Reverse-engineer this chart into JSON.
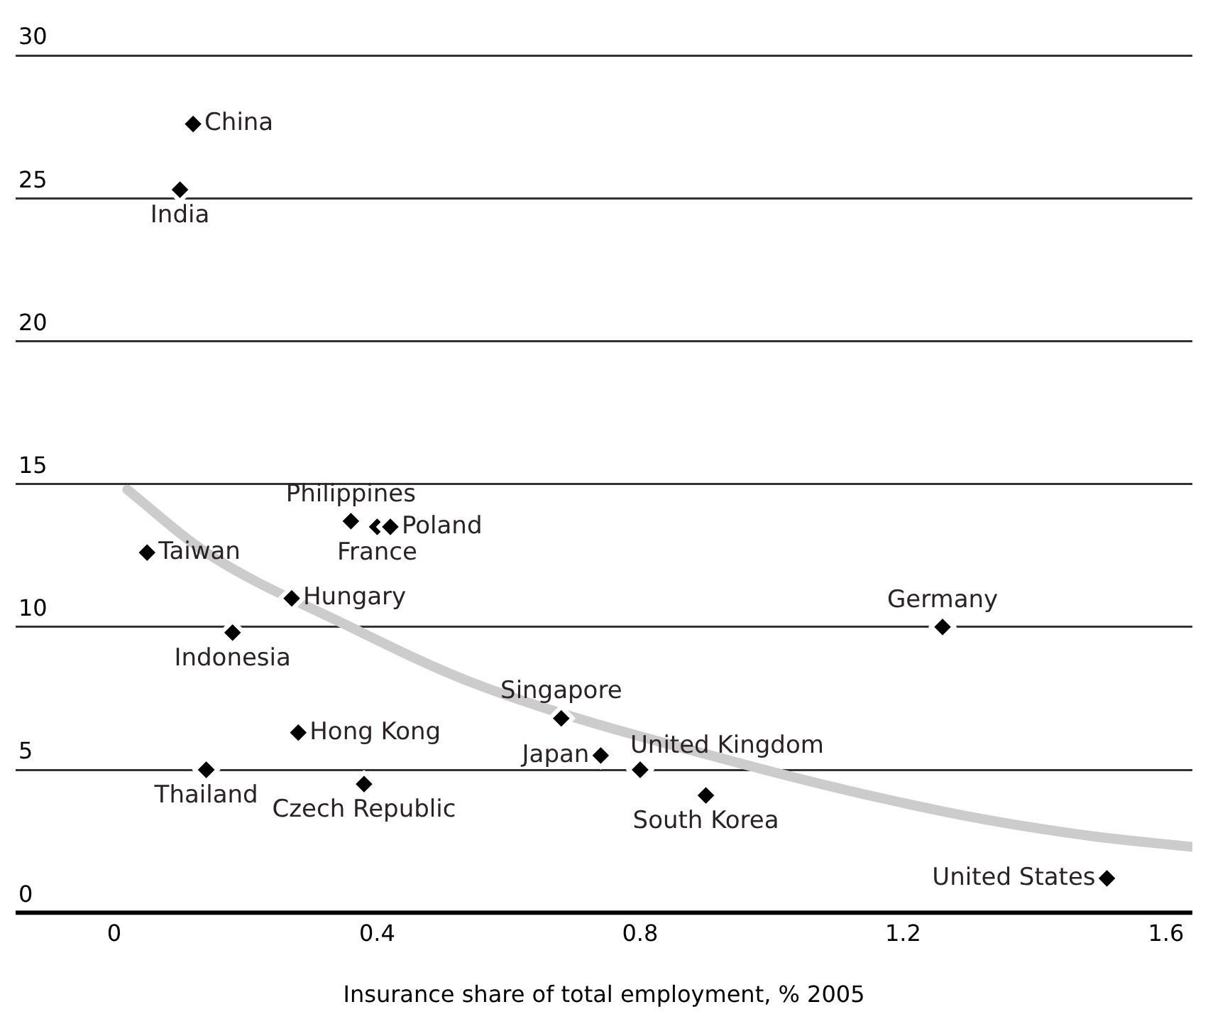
{
  "chart_data": {
    "type": "scatter",
    "xlabel": "Insurance share of total employment, % 2005",
    "x": [
      0.12,
      0.1,
      0.36,
      0.4,
      0.42,
      0.05,
      0.27,
      0.18,
      1.26,
      0.68,
      0.28,
      0.74,
      0.14,
      0.8,
      0.38,
      0.9,
      1.51
    ],
    "series": [
      {
        "type": "scatter",
        "color": "#000000",
        "values": [
          27.6,
          25.3,
          13.7,
          13.5,
          13.5,
          12.6,
          11.0,
          9.8,
          10.0,
          6.8,
          6.3,
          5.5,
          5.0,
          5.0,
          4.5,
          4.1,
          1.2
        ]
      },
      {
        "type": "line",
        "color": "#cccccc",
        "x": [
          0.02,
          0.14,
          0.35,
          0.55,
          0.94,
          1.27,
          1.48,
          1.64
        ],
        "values": [
          14.8,
          12.6,
          10.1,
          8.0,
          5.3,
          3.5,
          2.7,
          2.3
        ],
        "marker": "none"
      }
    ],
    "annotations": [
      {
        "text": "China",
        "x": 0.12,
        "y": 27.6
      },
      {
        "text": "India",
        "x": 0.1,
        "y": 25.3
      },
      {
        "text": "Philippines",
        "x": 0.36,
        "y": 13.7
      },
      {
        "text": "France",
        "x": 0.4,
        "y": 13.5
      },
      {
        "text": "Poland",
        "x": 0.42,
        "y": 13.5
      },
      {
        "text": "Taiwan",
        "x": 0.05,
        "y": 12.6
      },
      {
        "text": "Hungary",
        "x": 0.27,
        "y": 11.0
      },
      {
        "text": "Indonesia",
        "x": 0.18,
        "y": 9.8
      },
      {
        "text": "Germany",
        "x": 1.26,
        "y": 10.0
      },
      {
        "text": "Singapore",
        "x": 0.68,
        "y": 6.8
      },
      {
        "text": "Hong Kong",
        "x": 0.28,
        "y": 6.3
      },
      {
        "text": "Japan",
        "x": 0.74,
        "y": 5.5
      },
      {
        "text": "Thailand",
        "x": 0.14,
        "y": 5.0
      },
      {
        "text": "United Kingdom",
        "x": 0.8,
        "y": 5.0
      },
      {
        "text": "Czech Republic",
        "x": 0.38,
        "y": 4.5
      },
      {
        "text": "South Korea",
        "x": 0.9,
        "y": 4.1
      },
      {
        "text": "United States",
        "x": 1.51,
        "y": 1.2
      }
    ],
    "xlim": [
      -0.15,
      1.64
    ],
    "xticks": [
      0,
      0.4,
      0.8,
      1.2,
      1.6
    ],
    "ylim": [
      0,
      30
    ],
    "yticks": [
      0,
      5,
      10,
      15,
      20,
      25,
      30
    ],
    "grid": "y",
    "marker": "diamond",
    "legend": false
  }
}
